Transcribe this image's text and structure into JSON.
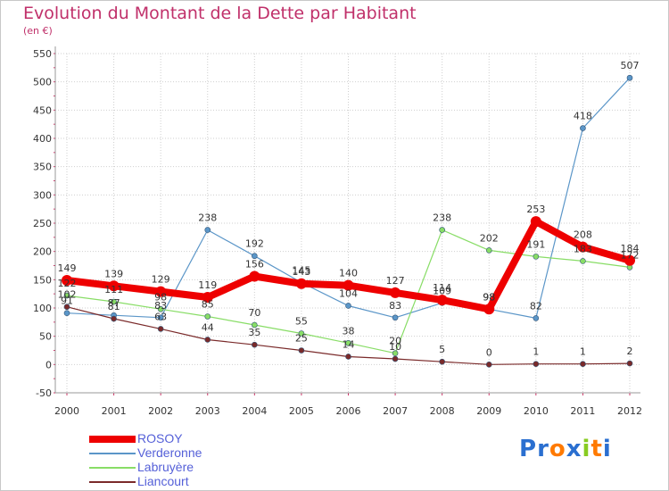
{
  "chart_data": {
    "type": "line",
    "title": "Evolution du Montant de la Dette par Habitant",
    "unit_label": "(en €)",
    "x": [
      "2000",
      "2001",
      "2002",
      "2003",
      "2004",
      "2005",
      "2006",
      "2007",
      "2008",
      "2009",
      "2010",
      "2011",
      "2012"
    ],
    "ylim": [
      -50,
      550
    ],
    "yticks": [
      -50,
      0,
      50,
      100,
      150,
      200,
      250,
      300,
      350,
      400,
      450,
      500,
      550
    ],
    "grid": true,
    "legend_position": "bottom-left",
    "series": [
      {
        "name": "ROSOY",
        "color": "#ee0000",
        "values": [
          149,
          139,
          129,
          119,
          156,
          143,
          140,
          127,
          114,
          98,
          253,
          208,
          184
        ]
      },
      {
        "name": "Verderonne",
        "color": "#5b96c8",
        "values": [
          91,
          87,
          83,
          238,
          192,
          145,
          104,
          83,
          109,
          98,
          82,
          418,
          507
        ]
      },
      {
        "name": "Labruyère",
        "color": "#88dd66",
        "values": [
          122,
          111,
          98,
          85,
          70,
          55,
          38,
          20,
          238,
          202,
          191,
          183,
          172
        ]
      },
      {
        "name": "Liancourt",
        "color": "#7a2a2a",
        "values": [
          102,
          81,
          63,
          44,
          35,
          25,
          14,
          10,
          5,
          0,
          1,
          1,
          2
        ]
      }
    ]
  },
  "logo": {
    "letters": [
      "P",
      "r",
      "o",
      "x",
      "i",
      "t",
      "i"
    ],
    "colors": [
      "#2a6fd0",
      "#2a6fd0",
      "#ff7a00",
      "#2a6fd0",
      "#88cc22",
      "#ff7a00",
      "#2a6fd0"
    ]
  }
}
